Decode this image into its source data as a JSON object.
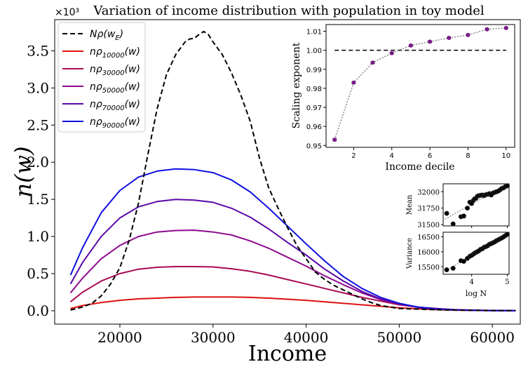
{
  "chart_data": [
    {
      "type": "line",
      "title": "Variation of income distribution with population in toy model",
      "xlabel": "Income",
      "ylabel": "n(w)",
      "y_scale_label": "×10³",
      "xlim": [
        13000,
        63000
      ],
      "ylim": [
        -0.18,
        3.92
      ],
      "xticks": [
        20000,
        30000,
        40000,
        50000,
        60000
      ],
      "xtick_labels": [
        "20000",
        "30000",
        "40000",
        "50000",
        "60000"
      ],
      "yticks": [
        0.0,
        0.5,
        1.0,
        1.5,
        2.0,
        2.5,
        3.0,
        3.5
      ],
      "ytick_labels": [
        "0.0",
        "0.5",
        "1.0",
        "1.5",
        "2.0",
        "2.5",
        "3.0",
        "3.5"
      ],
      "legend_position": "top-left",
      "series": [
        {
          "name": "Nρ(w_E)",
          "label_main": "Nρ(w",
          "label_sub": "E",
          "label_close": ")",
          "color": "#000000",
          "dashed": true,
          "x": [
            14700,
            16000,
            17000,
            18000,
            19000,
            20000,
            21000,
            22000,
            23000,
            24000,
            25000,
            26000,
            27000,
            27500,
            28000,
            28500,
            29000,
            29500,
            30000,
            31000,
            32000,
            33000,
            34000,
            35000,
            36000,
            37000,
            38000,
            39000,
            40000,
            41000,
            42000,
            43000,
            44000,
            45000,
            46000,
            47000,
            48000,
            49000,
            50000,
            55000,
            62500
          ],
          "y": [
            0.01,
            0.05,
            0.1,
            0.2,
            0.36,
            0.58,
            0.95,
            1.45,
            2.1,
            2.72,
            3.18,
            3.45,
            3.62,
            3.66,
            3.67,
            3.72,
            3.76,
            3.72,
            3.62,
            3.45,
            3.2,
            2.9,
            2.55,
            2.05,
            1.65,
            1.38,
            1.12,
            0.88,
            0.7,
            0.52,
            0.42,
            0.34,
            0.28,
            0.22,
            0.16,
            0.11,
            0.07,
            0.05,
            0.03,
            0.01,
            0.0
          ]
        },
        {
          "name": "nρ10000(w)",
          "label_main": "nρ",
          "label_sub": "10000",
          "label_close": "(w)",
          "color": "#dd1111",
          "dashed": false,
          "x": [
            14700,
            16000,
            18000,
            20000,
            22000,
            24000,
            26000,
            28000,
            30000,
            32000,
            34000,
            36000,
            38000,
            40000,
            42000,
            44000,
            46000,
            48000,
            50000,
            52000,
            54000,
            56000,
            58000,
            60000,
            62500
          ],
          "y": [
            0.03,
            0.07,
            0.11,
            0.14,
            0.16,
            0.17,
            0.18,
            0.185,
            0.185,
            0.185,
            0.18,
            0.17,
            0.155,
            0.14,
            0.12,
            0.1,
            0.08,
            0.06,
            0.04,
            0.025,
            0.015,
            0.008,
            0.004,
            0.002,
            0.0
          ]
        },
        {
          "name": "nρ30000(w)",
          "label_main": "nρ",
          "label_sub": "30000",
          "label_close": "(w)",
          "color": "#aa0a55",
          "dashed": false,
          "x": [
            14700,
            16000,
            18000,
            20000,
            22000,
            24000,
            26000,
            28000,
            30000,
            32000,
            34000,
            36000,
            38000,
            40000,
            42000,
            44000,
            46000,
            48000,
            50000,
            52000,
            54000,
            56000,
            58000,
            60000,
            62500
          ],
          "y": [
            0.12,
            0.25,
            0.4,
            0.5,
            0.56,
            0.585,
            0.595,
            0.595,
            0.59,
            0.565,
            0.53,
            0.48,
            0.42,
            0.36,
            0.3,
            0.24,
            0.18,
            0.13,
            0.08,
            0.05,
            0.03,
            0.015,
            0.008,
            0.004,
            0.0
          ]
        },
        {
          "name": "nρ50000(w)",
          "label_main": "nρ",
          "label_sub": "50000",
          "label_close": "(w)",
          "color": "#8e0a8e",
          "dashed": false,
          "x": [
            14700,
            16000,
            18000,
            20000,
            22000,
            24000,
            26000,
            28000,
            30000,
            32000,
            34000,
            36000,
            38000,
            40000,
            42000,
            44000,
            46000,
            48000,
            50000,
            52000,
            54000,
            56000,
            58000,
            60000,
            62500
          ],
          "y": [
            0.24,
            0.44,
            0.7,
            0.88,
            1.0,
            1.06,
            1.08,
            1.085,
            1.06,
            1.02,
            0.94,
            0.84,
            0.72,
            0.6,
            0.47,
            0.35,
            0.24,
            0.15,
            0.09,
            0.05,
            0.025,
            0.012,
            0.006,
            0.003,
            0.0
          ]
        },
        {
          "name": "nρ70000(w)",
          "label_main": "nρ",
          "label_sub": "70000",
          "label_close": "(w)",
          "color": "#5a07a8",
          "dashed": false,
          "x": [
            14700,
            16000,
            18000,
            20000,
            22000,
            24000,
            26000,
            28000,
            30000,
            32000,
            34000,
            36000,
            38000,
            40000,
            42000,
            44000,
            46000,
            48000,
            50000,
            52000,
            54000,
            56000,
            58000,
            60000,
            62500
          ],
          "y": [
            0.36,
            0.65,
            1.0,
            1.25,
            1.4,
            1.47,
            1.5,
            1.49,
            1.46,
            1.38,
            1.26,
            1.1,
            0.92,
            0.75,
            0.56,
            0.4,
            0.26,
            0.16,
            0.09,
            0.045,
            0.022,
            0.011,
            0.005,
            0.002,
            0.0
          ]
        },
        {
          "name": "nρ90000(w)",
          "label_main": "nρ",
          "label_sub": "90000",
          "label_close": "(w)",
          "color": "#1010dd",
          "dashed": false,
          "x": [
            14700,
            16000,
            18000,
            20000,
            22000,
            24000,
            26000,
            28000,
            30000,
            32000,
            34000,
            36000,
            38000,
            40000,
            42000,
            44000,
            46000,
            48000,
            50000,
            52000,
            54000,
            56000,
            58000,
            60000,
            62500
          ],
          "y": [
            0.48,
            0.85,
            1.32,
            1.62,
            1.8,
            1.88,
            1.91,
            1.9,
            1.86,
            1.76,
            1.6,
            1.38,
            1.14,
            0.9,
            0.67,
            0.46,
            0.3,
            0.18,
            0.1,
            0.05,
            0.025,
            0.012,
            0.006,
            0.002,
            0.0
          ]
        }
      ]
    },
    {
      "type": "scatter",
      "title": "",
      "xlabel": "Income decile",
      "ylabel": "Scaling exponent",
      "xlim": [
        0.55,
        10.45
      ],
      "ylim": [
        0.949,
        1.0135
      ],
      "xticks": [
        2,
        4,
        6,
        8,
        10
      ],
      "xtick_labels": [
        "2",
        "4",
        "6",
        "8",
        "10"
      ],
      "yticks": [
        0.95,
        0.96,
        0.97,
        0.98,
        0.99,
        1.0,
        1.01
      ],
      "ytick_labels": [
        "0.95",
        "0.96",
        "0.97",
        "0.98",
        "0.99",
        "1.00",
        "1.01"
      ],
      "reference_line_y": 1.0,
      "series": [
        {
          "name": "exponent",
          "color": "#7a1a8a",
          "x": [
            1,
            2,
            3,
            4,
            5,
            6,
            7,
            8,
            9,
            10
          ],
          "y": [
            0.953,
            0.983,
            0.9935,
            0.9985,
            1.0025,
            1.0045,
            1.0065,
            1.008,
            1.011,
            1.0117
          ],
          "err": [
            0.0006,
            0.0005,
            0.0005,
            0.0005,
            0.0005,
            0.0005,
            0.0005,
            0.0005,
            0.0005,
            0.0005
          ]
        }
      ]
    },
    {
      "type": "scatter",
      "title": "",
      "xlabel": "",
      "ylabel": "Mean",
      "xlim": [
        3.2,
        5.05
      ],
      "ylim": [
        31480,
        32120
      ],
      "yticks": [
        31500,
        31750,
        32000
      ],
      "ytick_labels": [
        "31500",
        "31750",
        "32000"
      ],
      "xticks": [
        4,
        5
      ],
      "series": [
        {
          "name": "mean",
          "x": [
            3.3,
            3.48,
            3.7,
            3.78,
            3.88,
            3.95,
            4.0,
            4.05,
            4.08,
            4.12,
            4.16,
            4.2,
            4.25,
            4.3,
            4.35,
            4.4,
            4.45,
            4.5,
            4.55,
            4.6,
            4.65,
            4.7,
            4.75,
            4.8,
            4.85,
            4.9,
            4.95,
            5.0
          ],
          "y": [
            31670,
            31510,
            31620,
            31630,
            31750,
            31840,
            31820,
            31870,
            31890,
            31900,
            31930,
            31940,
            31945,
            31950,
            31940,
            31955,
            31960,
            31970,
            31950,
            31980,
            31990,
            32000,
            32010,
            32030,
            32050,
            32060,
            32080,
            32090
          ]
        }
      ]
    },
    {
      "type": "scatter",
      "title": "",
      "xlabel": "log N",
      "ylabel": "Variance",
      "xlim": [
        3.2,
        5.05
      ],
      "ylim": [
        15250,
        16650
      ],
      "yticks": [
        15500,
        16000,
        16500
      ],
      "ytick_labels": [
        "15500",
        "16000",
        "16500"
      ],
      "xticks": [
        4,
        5
      ],
      "xtick_labels": [
        "4",
        "5"
      ],
      "series": [
        {
          "name": "variance",
          "x": [
            3.3,
            3.48,
            3.7,
            3.78,
            3.88,
            3.95,
            4.0,
            4.05,
            4.08,
            4.12,
            4.16,
            4.2,
            4.25,
            4.3,
            4.35,
            4.4,
            4.45,
            4.5,
            4.55,
            4.6,
            4.65,
            4.7,
            4.75,
            4.8,
            4.85,
            4.9,
            4.95,
            5.0
          ],
          "y": [
            15400,
            15450,
            15700,
            15680,
            15780,
            15850,
            15880,
            15920,
            15950,
            15980,
            16000,
            16030,
            16080,
            16100,
            16150,
            16170,
            16200,
            16250,
            16270,
            16300,
            16330,
            16370,
            16400,
            16430,
            16460,
            16500,
            16540,
            16580
          ]
        }
      ]
    }
  ]
}
